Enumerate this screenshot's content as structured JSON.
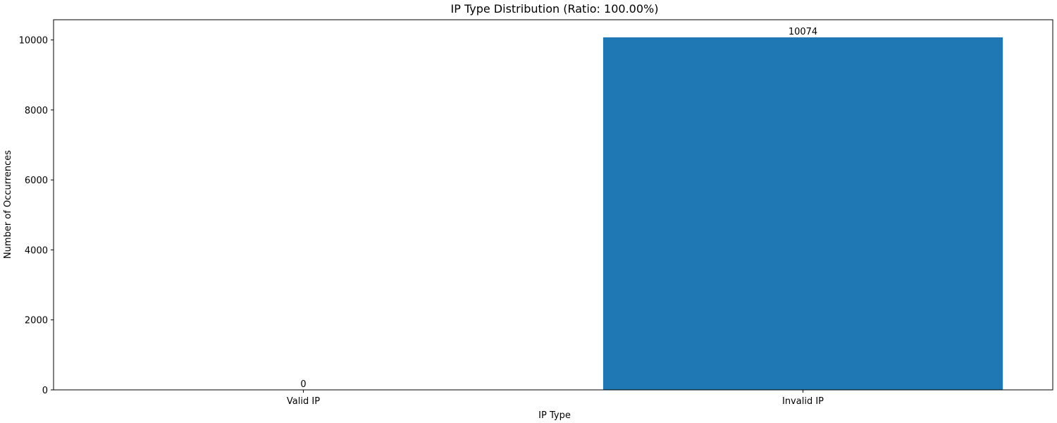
{
  "chart_data": {
    "type": "bar",
    "title": "IP Type Distribution (Ratio: 100.00%)",
    "xlabel": "IP Type",
    "ylabel": "Number of Occurrences",
    "categories": [
      "Valid IP",
      "Invalid IP"
    ],
    "values": [
      0,
      10074
    ],
    "data_labels": [
      "0",
      "10074"
    ],
    "ylim": [
      0,
      10577.7
    ],
    "yticks": [
      0,
      2000,
      4000,
      6000,
      8000,
      10000
    ],
    "grid": false,
    "legend": "none",
    "bar_color": "#1f77b4",
    "axis_color": "#000000"
  }
}
